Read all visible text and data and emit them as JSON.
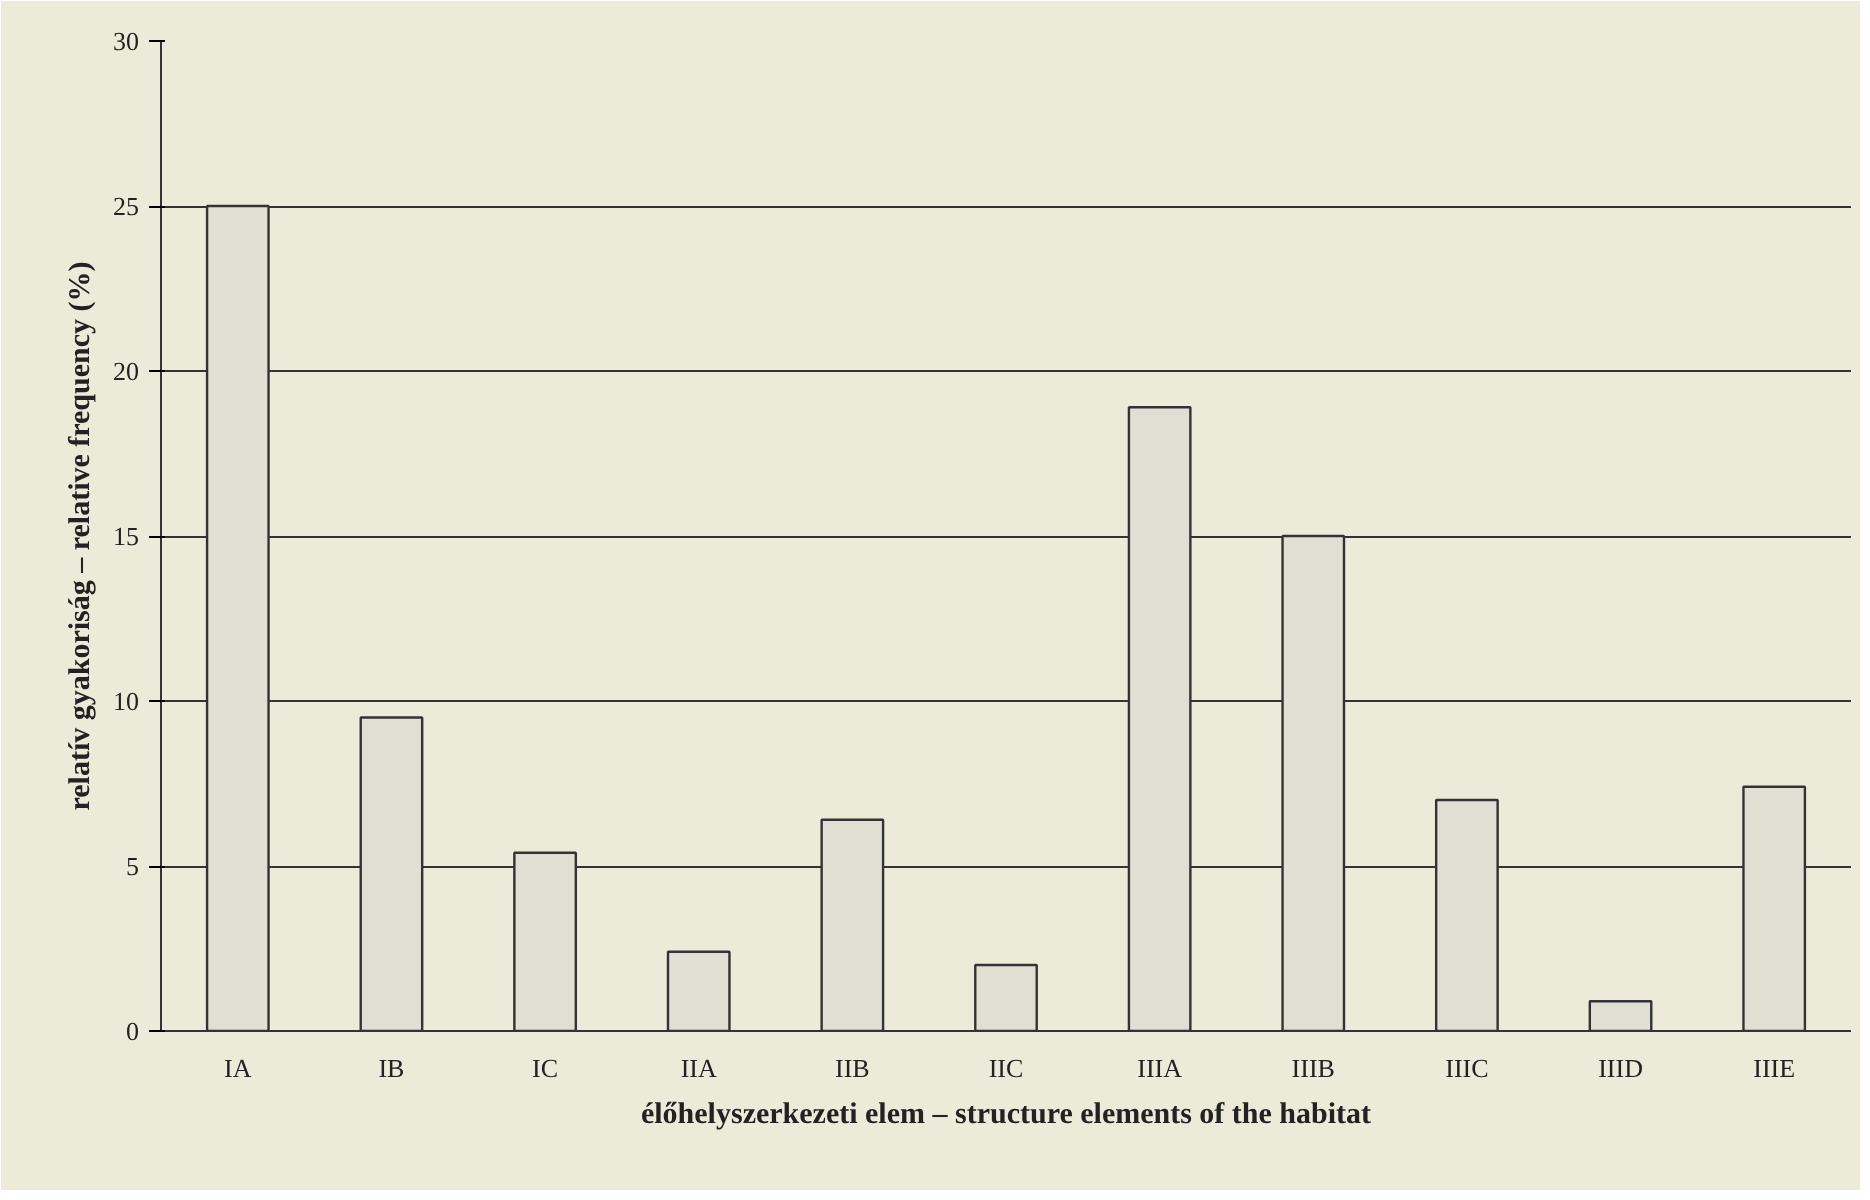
{
  "chart_data": {
    "type": "bar",
    "xlabel": "élőhelyszerkezeti elem – structure elements of the habitat",
    "ylabel": "relatív gyakoriság – relative frequency (%)",
    "categories": [
      "IA",
      "IB",
      "IC",
      "IIA",
      "IIB",
      "IIC",
      "IIIA",
      "IIIB",
      "IIIC",
      "IIID",
      "IIIE"
    ],
    "values": [
      25,
      9.5,
      5.4,
      2.4,
      6.4,
      2.0,
      18.9,
      15,
      7.0,
      0.9,
      7.4
    ],
    "color": "#dfdfd3",
    "ylim": [
      0,
      30
    ],
    "yticks": [
      0,
      5,
      10,
      15,
      20,
      25,
      30
    ],
    "grid": "y"
  }
}
